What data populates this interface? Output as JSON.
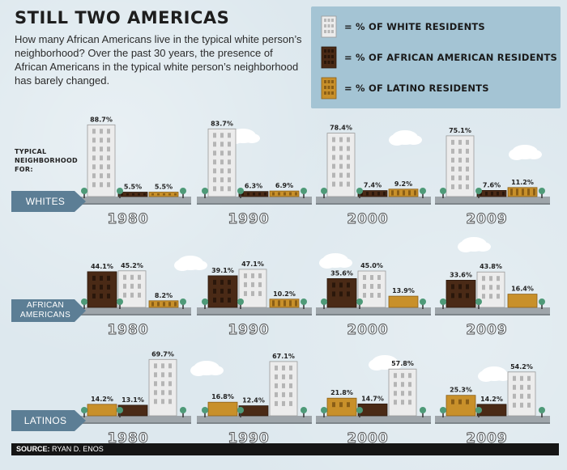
{
  "title": "STILL TWO AMERICAS",
  "subtitle": "How many African Americans live in the typical white person’s neighborhood? Over the past 30 years, the presence of African Americans in the typical white person’s neighborhood has barely changed.",
  "legend": [
    {
      "key": "white",
      "label": "= % OF WHITE RESIDENTS",
      "color": "#ebebeb"
    },
    {
      "key": "black",
      "label": "= % OF AFRICAN AMERICAN RESIDENTS",
      "color": "#4a2a16"
    },
    {
      "key": "latino",
      "label": "= % OF LATINO RESIDENTS",
      "color": "#c8902a"
    }
  ],
  "row_caption": "TYPICAL NEIGHBORHOOD FOR:",
  "source_label": "SOURCE:",
  "source_text": "RYAN D. ENOS",
  "colors": {
    "white": "#ececec",
    "black": "#4a2a16",
    "latino": "#c8902a",
    "tag": "#5c7e95",
    "sidewalk": "#9ea5aa",
    "tree": "#4e9a78"
  },
  "chart_data": {
    "type": "bar",
    "categories": [
      "1980",
      "1990",
      "2000",
      "2009"
    ],
    "rows": [
      {
        "label": "WHITES",
        "groups": [
          {
            "year": "1980",
            "bars": [
              {
                "key": "white",
                "value": 88.7,
                "label": "88.7%"
              },
              {
                "key": "black",
                "value": 5.5,
                "label": "5.5%"
              },
              {
                "key": "latino",
                "value": 5.5,
                "label": "5.5%"
              }
            ]
          },
          {
            "year": "1990",
            "bars": [
              {
                "key": "white",
                "value": 83.7,
                "label": "83.7%"
              },
              {
                "key": "black",
                "value": 6.3,
                "label": "6.3%"
              },
              {
                "key": "latino",
                "value": 6.9,
                "label": "6.9%"
              }
            ]
          },
          {
            "year": "2000",
            "bars": [
              {
                "key": "white",
                "value": 78.4,
                "label": "78.4%"
              },
              {
                "key": "black",
                "value": 7.4,
                "label": "7.4%"
              },
              {
                "key": "latino",
                "value": 9.2,
                "label": "9.2%"
              }
            ]
          },
          {
            "year": "2009",
            "bars": [
              {
                "key": "white",
                "value": 75.1,
                "label": "75.1%"
              },
              {
                "key": "black",
                "value": 7.6,
                "label": "7.6%"
              },
              {
                "key": "latino",
                "value": 11.2,
                "label": "11.2%"
              }
            ]
          }
        ]
      },
      {
        "label": "AFRICAN AMERICANS",
        "groups": [
          {
            "year": "1980",
            "bars": [
              {
                "key": "black",
                "value": 44.1,
                "label": "44.1%"
              },
              {
                "key": "white",
                "value": 45.2,
                "label": "45.2%"
              },
              {
                "key": "latino",
                "value": 8.2,
                "label": "8.2%"
              }
            ]
          },
          {
            "year": "1990",
            "bars": [
              {
                "key": "black",
                "value": 39.1,
                "label": "39.1%"
              },
              {
                "key": "white",
                "value": 47.1,
                "label": "47.1%"
              },
              {
                "key": "latino",
                "value": 10.2,
                "label": "10.2%"
              }
            ]
          },
          {
            "year": "2000",
            "bars": [
              {
                "key": "black",
                "value": 35.6,
                "label": "35.6%"
              },
              {
                "key": "white",
                "value": 45.0,
                "label": "45.0%"
              },
              {
                "key": "latino",
                "value": 13.9,
                "label": "13.9%"
              }
            ]
          },
          {
            "year": "2009",
            "bars": [
              {
                "key": "black",
                "value": 33.6,
                "label": "33.6%"
              },
              {
                "key": "white",
                "value": 43.8,
                "label": "43.8%"
              },
              {
                "key": "latino",
                "value": 16.4,
                "label": "16.4%"
              }
            ]
          }
        ]
      },
      {
        "label": "LATINOS",
        "groups": [
          {
            "year": "1980",
            "bars": [
              {
                "key": "latino",
                "value": 14.2,
                "label": "14.2%"
              },
              {
                "key": "black",
                "value": 13.1,
                "label": "13.1%"
              },
              {
                "key": "white",
                "value": 69.7,
                "label": "69.7%"
              }
            ]
          },
          {
            "year": "1990",
            "bars": [
              {
                "key": "latino",
                "value": 16.8,
                "label": "16.8%"
              },
              {
                "key": "black",
                "value": 12.4,
                "label": "12.4%"
              },
              {
                "key": "white",
                "value": 67.1,
                "label": "67.1%"
              }
            ]
          },
          {
            "year": "2000",
            "bars": [
              {
                "key": "latino",
                "value": 21.8,
                "label": "21.8%"
              },
              {
                "key": "black",
                "value": 14.7,
                "label": "14.7%"
              },
              {
                "key": "white",
                "value": 57.8,
                "label": "57.8%"
              }
            ]
          },
          {
            "year": "2009",
            "bars": [
              {
                "key": "latino",
                "value": 25.3,
                "label": "25.3%"
              },
              {
                "key": "black",
                "value": 14.2,
                "label": "14.2%"
              },
              {
                "key": "white",
                "value": 54.2,
                "label": "54.2%"
              }
            ]
          }
        ]
      }
    ]
  }
}
